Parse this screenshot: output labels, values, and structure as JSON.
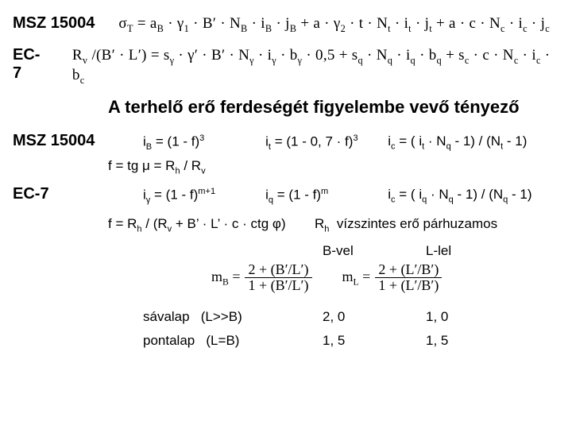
{
  "std1": {
    "label": "MSZ 15004"
  },
  "std2": {
    "label": "EC-7"
  },
  "eq_top": "σ<span class='sub'>T</span> = a<span class='sub'>B</span> · γ<span class='sub'>1</span> · B′ · N<span class='sub'>B</span> · i<span class='sub'>B</span> · j<span class='sub'>B</span> + a · γ<span class='sub'>2</span> · t · N<span class='sub'>t</span> · i<span class='sub'>t</span> · j<span class='sub'>t</span> + a · c · N<span class='sub'>c</span> · i<span class='sub'>c</span> · j<span class='sub'>c</span>",
  "eq_second": "R<span class='sub'>v</span> /(B′ · L′) = s<span class='sub'>γ</span> · γ′ · B′ · N<span class='sub'>γ</span> · i<span class='sub'>γ</span> · b<span class='sub'>γ</span> · 0,5 + s<span class='sub'>q</span> · N<span class='sub'>q</span> · i<span class='sub'>q</span> · b<span class='sub'>q</span> + s<span class='sub'>c</span> · c · N<span class='sub'>c</span> · i<span class='sub'>c</span> · b<span class='sub'>c</span>",
  "heading": "A terhelő erő ferdeségét figyelembe vevő tényező",
  "msz_iB": "i<span class='sub'>B</span> = (1 - f)<span class='sup'>3</span>",
  "msz_it": "i<span class='sub'>t</span> = (1 - 0,&nbsp;7 · f)<span class='sup'>3</span>",
  "msz_ic": "i<span class='sub'>c</span> = ( i<span class='sub'>t</span> · N<span class='sub'>q</span> - 1) / (N<span class='sub'>t</span> - 1)",
  "fdef": "f = tg μ = R<span class='sub'>h</span> / R<span class='sub'>v</span>",
  "ec_ig": "i<span class='sub'>γ</span> = (1 - f)<span class='sup'>m+1</span>",
  "ec_iq": "i<span class='sub'>q</span> = (1 - f)<span class='sup'>m</span>",
  "ec_ic": "i<span class='sub'>c</span> = ( i<span class='sub'>q</span> · N<span class='sub'>q</span> - 1) / (N<span class='sub'>q</span> - 1)",
  "fdef2": "f = R<span class='sub'>h</span> / (R<span class='sub'>v</span> + B’ · L’ · c · ctg φ)",
  "rh_text": "R<span class='sub'>h</span>&nbsp;&nbsp;vízszintes erő párhuzamos",
  "col_b": "B-vel",
  "col_l": "L-lel",
  "mB": {
    "lhs": "m<span class='sub'>B</span> =",
    "num": "2 + (B′/L′)",
    "den": "1 + (B′/L′)"
  },
  "mL": {
    "lhs": "m<span class='sub'>L</span> =",
    "num": "2 + (L′/B′)",
    "den": "1 + (L′/B′)"
  },
  "savalap": {
    "label": "sávalap&nbsp;&nbsp;&nbsp;(L>>B)",
    "b": "2, 0",
    "l": "1, 0"
  },
  "pontalap": {
    "label": "pontalap&nbsp;&nbsp;&nbsp;(L=B)",
    "b": "1, 5",
    "l": "1, 5"
  }
}
